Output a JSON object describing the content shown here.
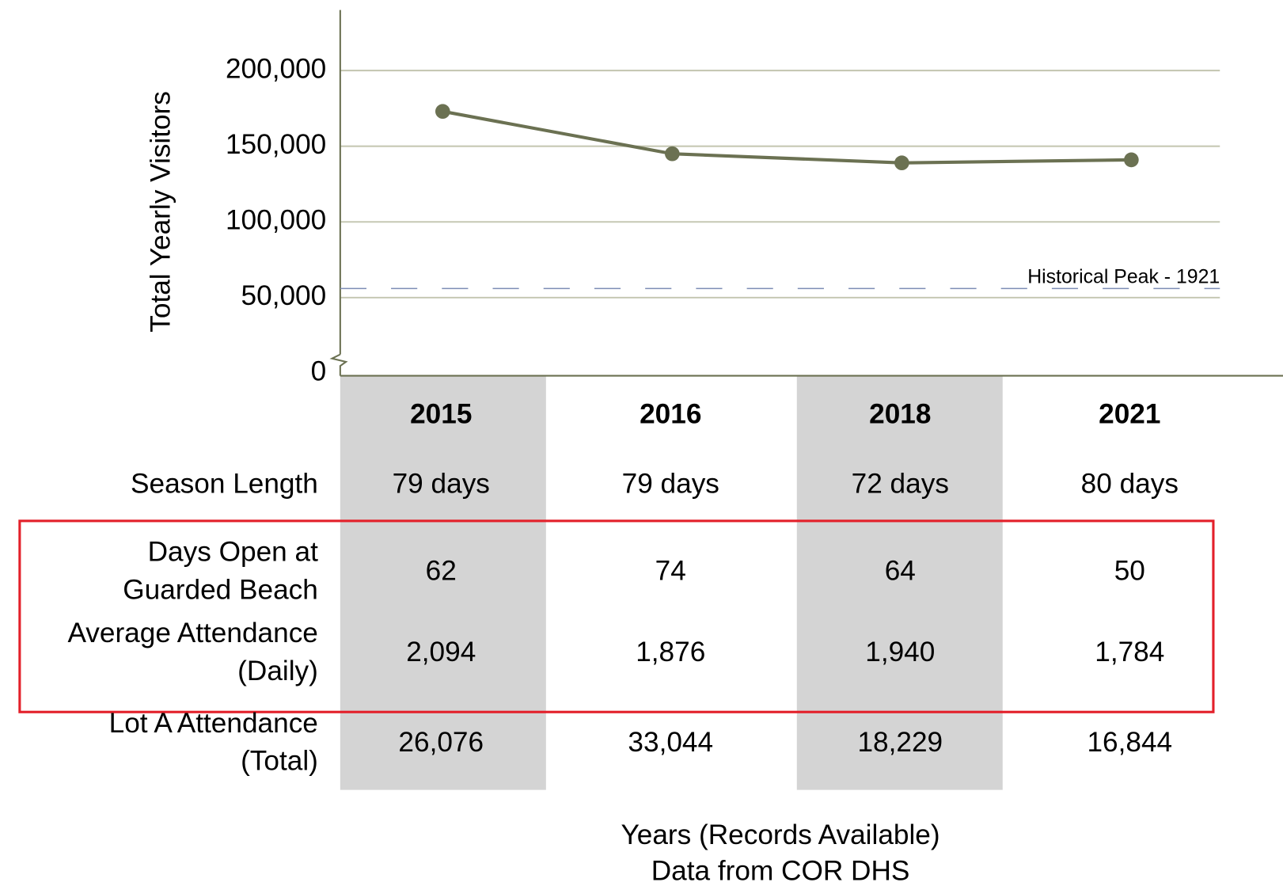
{
  "chart_data": {
    "type": "line",
    "y_label": "Total Yearly Visitors",
    "x_label": "Years (Records Available)",
    "note": "Data from COR DHS",
    "categories": [
      "2015",
      "2016",
      "2018",
      "2021"
    ],
    "series": [
      {
        "name": "Total Yearly Visitors",
        "color": "#6b7152",
        "values": [
          173000,
          145000,
          139000,
          141000
        ]
      }
    ],
    "ylim": [
      0,
      240000
    ],
    "yticks": [
      0,
      {
        "value": 50000,
        "label": "50,000"
      },
      {
        "value": 100000,
        "label": "100,000"
      },
      {
        "value": 150000,
        "label": "150,000"
      },
      {
        "value": 200000,
        "label": "200,000"
      }
    ],
    "grid": true,
    "annotations": [
      {
        "text": "Historical Peak - 1921",
        "value": 56000,
        "color": "#7d8db5"
      }
    ]
  },
  "table": {
    "rows": [
      {
        "label": [
          "Season Length"
        ],
        "values": [
          "79 days",
          "79 days",
          "72 days",
          "80 days"
        ]
      },
      {
        "label": [
          "Days Open at",
          "Guarded Beach"
        ],
        "values": [
          "62",
          "74",
          "64",
          "50"
        ]
      },
      {
        "label": [
          "Average Attendance",
          "(Daily)"
        ],
        "values": [
          "2,094",
          "1,876",
          "1,940",
          "1,784"
        ]
      },
      {
        "label": [
          "Lot A Attendance",
          "(Total)"
        ],
        "values": [
          "26,076",
          "33,044",
          "18,229",
          "16,844"
        ]
      }
    ]
  }
}
